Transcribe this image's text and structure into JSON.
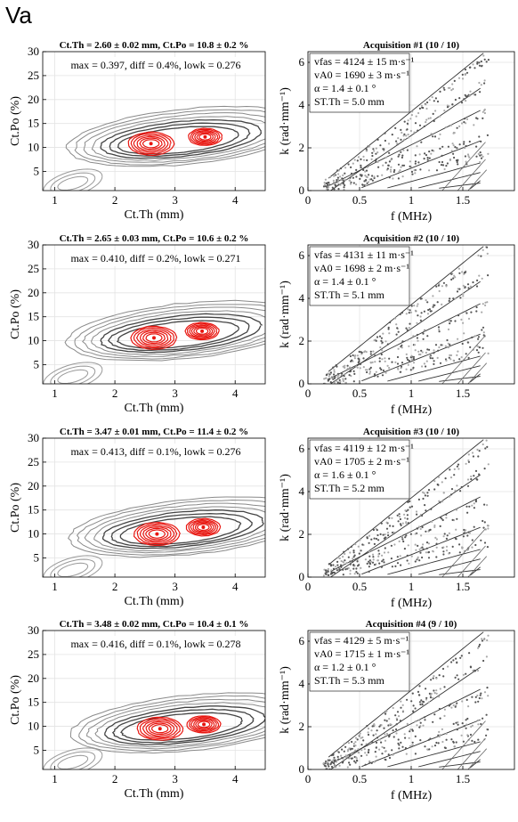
{
  "figure_label": "Va",
  "chart_data": [
    {
      "type": "contour",
      "panel": "left",
      "row": 1,
      "title": "Ct.Th = 2.60 ± 0.02 mm, Ct.Po = 10.8 ± 0.2 %",
      "annotation": "max = 0.397, diff = 0.4%, lowk = 0.276",
      "xlabel": "Ct.Th (mm)",
      "ylabel": "Ct.Po (%)",
      "xlim": [
        0.8,
        4.5
      ],
      "ylim": [
        1,
        30
      ],
      "xticks": [
        1,
        2,
        3,
        4
      ],
      "yticks": [
        5,
        10,
        15,
        20,
        25,
        30
      ],
      "grid": true,
      "peaks": [
        {
          "x": 2.6,
          "y": 10.8
        },
        {
          "x": 3.5,
          "y": 12.2
        }
      ],
      "base_y": 8
    },
    {
      "type": "scatter",
      "panel": "right",
      "row": 1,
      "title": "Acquisition #1 (10 / 10)",
      "legend": [
        "vfas = 4124 ± 15 m·s⁻¹",
        "vA0 = 1690 ± 3 m·s⁻¹",
        "α = 1.4 ± 0.1 °",
        "ST.Th = 5.0 mm"
      ],
      "xlabel": "f (MHz)",
      "ylabel": "k (rad·mm⁻¹)",
      "xlim": [
        0,
        2
      ],
      "ylim": [
        0,
        6.5
      ],
      "xticks": [
        0,
        0.5,
        1,
        1.5
      ],
      "yticks": [
        0,
        2,
        4,
        6
      ],
      "grid": true
    },
    {
      "type": "contour",
      "panel": "left",
      "row": 2,
      "title": "Ct.Th = 2.65 ± 0.03 mm, Ct.Po = 10.6 ± 0.2 %",
      "annotation": "max = 0.410, diff = 0.2%, lowk = 0.271",
      "xlabel": "Ct.Th (mm)",
      "ylabel": "Ct.Po (%)",
      "xlim": [
        0.8,
        4.5
      ],
      "ylim": [
        1,
        30
      ],
      "xticks": [
        1,
        2,
        3,
        4
      ],
      "yticks": [
        5,
        10,
        15,
        20,
        25,
        30
      ],
      "grid": true,
      "peaks": [
        {
          "x": 2.65,
          "y": 10.6
        },
        {
          "x": 3.45,
          "y": 12.0
        }
      ],
      "base_y": 7
    },
    {
      "type": "scatter",
      "panel": "right",
      "row": 2,
      "title": "Acquisition #2 (10 / 10)",
      "legend": [
        "vfas = 4131 ± 11 m·s⁻¹",
        "vA0 = 1698 ± 2 m·s⁻¹",
        "α = 1.4 ± 0.1 °",
        "ST.Th = 5.1 mm"
      ],
      "xlabel": "f (MHz)",
      "ylabel": "k (rad·mm⁻¹)",
      "xlim": [
        0,
        2
      ],
      "ylim": [
        0,
        6.5
      ],
      "xticks": [
        0,
        0.5,
        1,
        1.5
      ],
      "yticks": [
        0,
        2,
        4,
        6
      ],
      "grid": true
    },
    {
      "type": "contour",
      "panel": "left",
      "row": 3,
      "title": "Ct.Th = 3.47 ± 0.01 mm, Ct.Po = 11.4 ± 0.2 %",
      "annotation": "max = 0.413, diff = 0.1%, lowk = 0.276",
      "xlabel": "Ct.Th (mm)",
      "ylabel": "Ct.Po (%)",
      "xlim": [
        0.8,
        4.5
      ],
      "ylim": [
        1,
        30
      ],
      "xticks": [
        1,
        2,
        3,
        4
      ],
      "yticks": [
        5,
        10,
        15,
        20,
        25,
        30
      ],
      "grid": true,
      "peaks": [
        {
          "x": 2.7,
          "y": 10.0
        },
        {
          "x": 3.47,
          "y": 11.4
        }
      ],
      "base_y": 6
    },
    {
      "type": "scatter",
      "panel": "right",
      "row": 3,
      "title": "Acquisition #3 (10 / 10)",
      "legend": [
        "vfas = 4119 ± 12 m·s⁻¹",
        "vA0 = 1705 ± 2 m·s⁻¹",
        "α = 1.6 ± 0.1 °",
        "ST.Th = 5.2 mm"
      ],
      "xlabel": "f (MHz)",
      "ylabel": "k (rad·mm⁻¹)",
      "xlim": [
        0,
        2
      ],
      "ylim": [
        0,
        6.5
      ],
      "xticks": [
        0,
        0.5,
        1,
        1.5
      ],
      "yticks": [
        0,
        2,
        4,
        6
      ],
      "grid": true
    },
    {
      "type": "contour",
      "panel": "left",
      "row": 4,
      "title": "Ct.Th = 3.48 ± 0.02 mm, Ct.Po = 10.4 ± 0.1 %",
      "annotation": "max = 0.416, diff = 0.1%, lowk = 0.278",
      "xlabel": "Ct.Th (mm)",
      "ylabel": "Ct.Po (%)",
      "xlim": [
        0.8,
        4.5
      ],
      "ylim": [
        1,
        30
      ],
      "xticks": [
        1,
        2,
        3,
        4
      ],
      "yticks": [
        5,
        10,
        15,
        20,
        25,
        30
      ],
      "grid": true,
      "peaks": [
        {
          "x": 2.75,
          "y": 9.5
        },
        {
          "x": 3.48,
          "y": 10.4
        }
      ],
      "base_y": 5
    },
    {
      "type": "scatter",
      "panel": "right",
      "row": 4,
      "title": "Acquisition #4 (9 / 10)",
      "legend": [
        "vfas = 4129 ± 5 m·s⁻¹",
        "vA0 = 1715 ± 1 m·s⁻¹",
        "α = 1.2 ± 0.1 °",
        "ST.Th = 5.3 mm"
      ],
      "xlabel": "f (MHz)",
      "ylabel": "k (rad·mm⁻¹)",
      "xlim": [
        0,
        2
      ],
      "ylim": [
        0,
        6.5
      ],
      "xticks": [
        0,
        0.5,
        1,
        1.5
      ],
      "yticks": [
        0,
        2,
        4,
        6
      ],
      "grid": true
    }
  ]
}
